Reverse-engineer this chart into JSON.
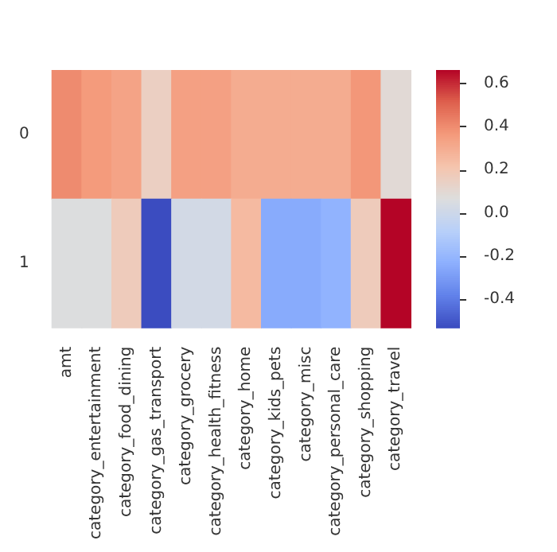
{
  "chart_data": {
    "type": "heatmap",
    "categories": [
      "amt",
      "category_entertainment",
      "category_food_dining",
      "category_gas_transport",
      "category_grocery",
      "category_health_fitness",
      "category_home",
      "category_kids_pets",
      "category_misc",
      "category_personal_care",
      "category_shopping",
      "category_travel"
    ],
    "y_categories": [
      "0",
      "1"
    ],
    "cells": [
      [
        0.4,
        0.36,
        0.33,
        0.15,
        0.34,
        0.34,
        0.3,
        0.3,
        0.3,
        0.3,
        0.37,
        0.09
      ],
      [
        0.06,
        0.06,
        0.17,
        -0.53,
        0.02,
        0.02,
        0.25,
        -0.25,
        -0.25,
        -0.22,
        0.17,
        0.66
      ]
    ],
    "clim": [
      -0.53,
      0.66
    ],
    "cticks": [
      -0.4,
      -0.2,
      {
        "value": 0,
        "label": "0.0"
      },
      0.2,
      0.4,
      0.6
    ]
  }
}
